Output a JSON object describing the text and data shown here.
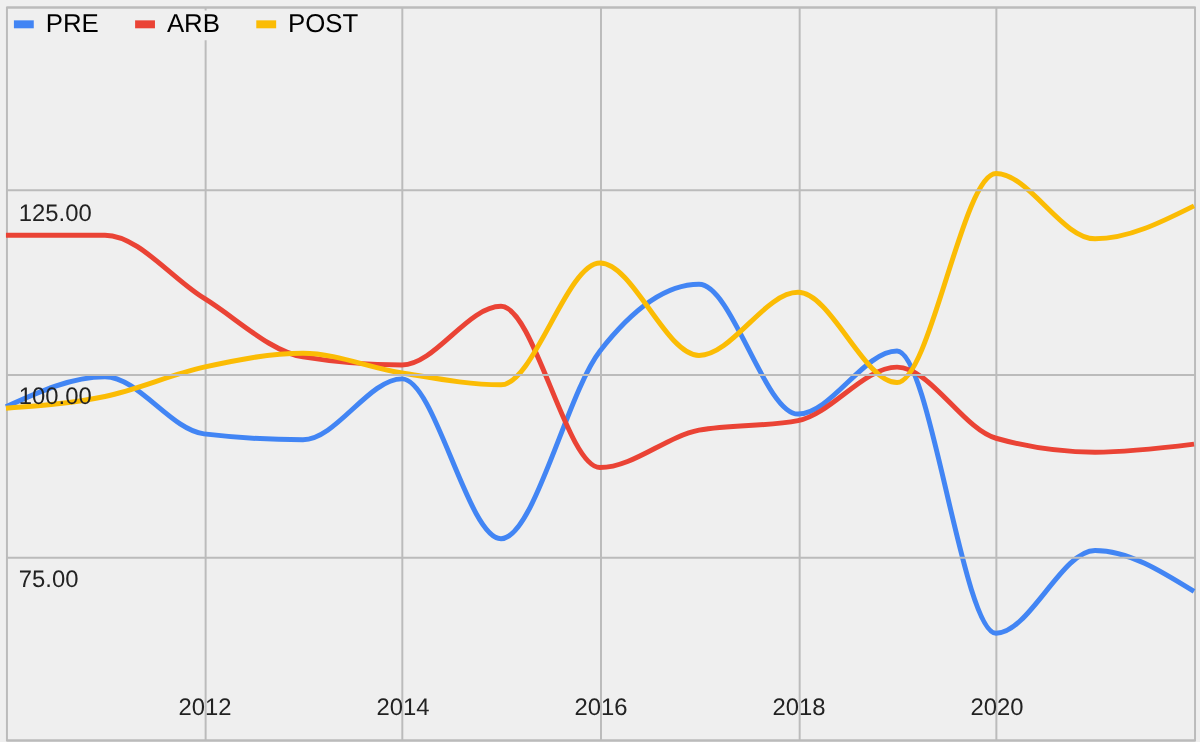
{
  "chart_data": {
    "type": "line",
    "x": [
      2010,
      2011,
      2012,
      2013,
      2014,
      2015,
      2016,
      2017,
      2018,
      2019,
      2020,
      2021,
      2022
    ],
    "series": [
      {
        "name": "PRE",
        "color": "#4285f4",
        "values": [
          95.4,
          99.5,
          91.7,
          90.9,
          99.2,
          77.4,
          103,
          112.1,
          94.4,
          103,
          64.5,
          75.8,
          70.2
        ]
      },
      {
        "name": "ARB",
        "color": "#ea4335",
        "values": [
          118.8,
          118.8,
          110.2,
          102.2,
          101.1,
          109.1,
          87.1,
          92.2,
          93.5,
          100.8,
          91.1,
          89.2,
          90.3
        ]
      },
      {
        "name": "POST",
        "color": "#fbbc04",
        "values": [
          95.2,
          96.8,
          100.8,
          102.7,
          100,
          98.4,
          115,
          102.4,
          111,
          98.7,
          127.2,
          118.3,
          122.8
        ]
      }
    ],
    "xlim": [
      2010,
      2022
    ],
    "xticks": [
      2012,
      2014,
      2016,
      2018,
      2020
    ],
    "ylim": [
      50,
      150
    ],
    "yticks": [
      {
        "value": 50,
        "label": null
      },
      {
        "value": 75,
        "label": "75.00"
      },
      {
        "value": 100,
        "label": "100.00"
      },
      {
        "value": 125,
        "label": "125.00"
      },
      {
        "value": 150,
        "label": null
      }
    ],
    "grid": true,
    "legend": "top left",
    "marker": "none",
    "line_style": "solid"
  }
}
